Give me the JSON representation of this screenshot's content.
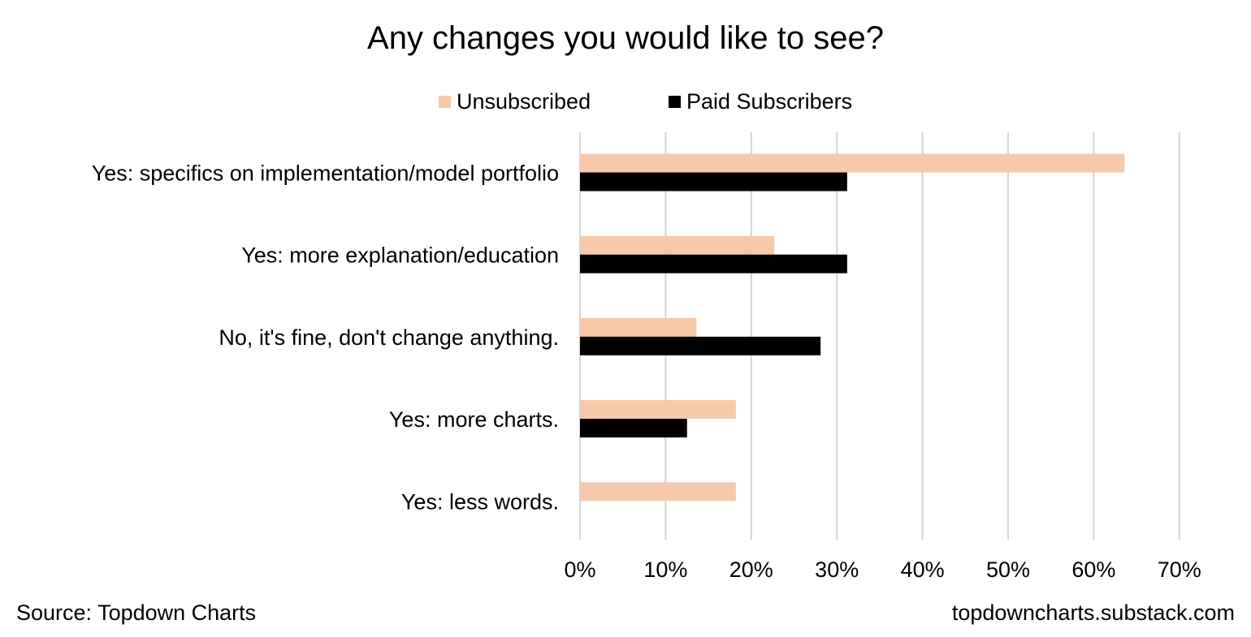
{
  "chart_data": {
    "type": "bar",
    "orientation": "horizontal",
    "title": "Any changes you would like to see?",
    "categories": [
      "Yes: specifics on implementation/model portfolio",
      "Yes: more explanation/education",
      "No, it's fine, don't change anything.",
      "Yes: more charts.",
      "Yes: less words."
    ],
    "series": [
      {
        "name": "Unsubscribed",
        "color": "#F6C9AA",
        "values": [
          63.6,
          22.7,
          13.6,
          18.2,
          18.2
        ]
      },
      {
        "name": "Paid Subscribers",
        "color": "#000000",
        "values": [
          31.2,
          31.2,
          28.1,
          12.5,
          0
        ]
      }
    ],
    "xlim": [
      0,
      70
    ],
    "xticks": [
      0,
      10,
      20,
      30,
      40,
      50,
      60,
      70
    ],
    "tick_format": "percent",
    "grid": "vertical",
    "legend": "top-center"
  },
  "footer": {
    "source": "Source: Topdown Charts",
    "site": "topdowncharts.substack.com"
  }
}
